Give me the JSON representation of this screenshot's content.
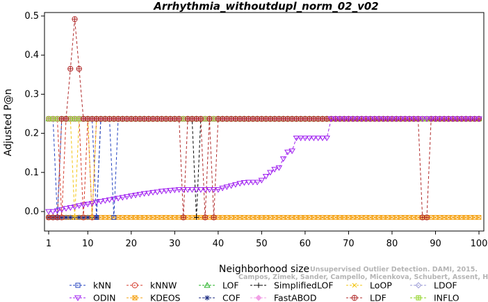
{
  "chart_data": {
    "type": "line",
    "title": "Arrhythmia_withoutdupl_norm_02_v02",
    "xlabel": "Neighborhood size",
    "ylabel": "Adjusted P@n",
    "xlim": [
      1,
      100
    ],
    "ylim": [
      -0.015,
      0.5
    ],
    "x_ticks": [
      1,
      10,
      20,
      30,
      40,
      50,
      60,
      70,
      80,
      90,
      100
    ],
    "y_ticks": [
      0.0,
      0.1,
      0.2,
      0.3,
      0.4,
      0.5
    ],
    "y_tick_labels": [
      "0.0",
      "0.1",
      "0.2",
      "0.3",
      "0.4",
      "0.5"
    ],
    "grid": false,
    "legend_position": "bottom",
    "series": [
      {
        "name": "kNN",
        "color": "#1f3fbf",
        "marker": "square",
        "base": 0.237,
        "dips": [
          [
            3,
            -0.015
          ],
          [
            12,
            -0.015
          ],
          [
            16,
            -0.015
          ]
        ]
      },
      {
        "name": "kNNW",
        "color": "#d43a2a",
        "marker": "circle",
        "base": 0.237,
        "dips": [
          [
            4,
            -0.015
          ],
          [
            9,
            -0.015
          ],
          [
            11,
            -0.015
          ]
        ]
      },
      {
        "name": "LOF",
        "color": "#22b022",
        "marker": "triangle-up",
        "base": 0.237,
        "dips": []
      },
      {
        "name": "SimplifiedLOF",
        "color": "#000000",
        "marker": "plus",
        "base": 0.237,
        "dips": [
          [
            35,
            -0.015
          ]
        ]
      },
      {
        "name": "LoOP",
        "color": "#f2c40f",
        "marker": "x",
        "base": 0.237,
        "dips": [
          [
            7,
            -0.015
          ],
          [
            11,
            -0.015
          ]
        ]
      },
      {
        "name": "LDOF",
        "color": "#9a9ad6",
        "marker": "diamond",
        "base": 0.237,
        "dips": []
      },
      {
        "name": "ODIN",
        "color": "#a020f0",
        "marker": "triangle-down",
        "values": [
          [
            1,
            0.0
          ],
          [
            2,
            0.0
          ],
          [
            3,
            0.002
          ],
          [
            4,
            0.005
          ],
          [
            5,
            0.008
          ],
          [
            6,
            0.01
          ],
          [
            7,
            0.012
          ],
          [
            8,
            0.015
          ],
          [
            9,
            0.017
          ],
          [
            10,
            0.019
          ],
          [
            11,
            0.021
          ],
          [
            12,
            0.024
          ],
          [
            13,
            0.026
          ],
          [
            14,
            0.028
          ],
          [
            15,
            0.03
          ],
          [
            16,
            0.032
          ],
          [
            17,
            0.034
          ],
          [
            18,
            0.036
          ],
          [
            19,
            0.038
          ],
          [
            20,
            0.04
          ],
          [
            21,
            0.042
          ],
          [
            22,
            0.044
          ],
          [
            23,
            0.046
          ],
          [
            24,
            0.047
          ],
          [
            25,
            0.049
          ],
          [
            26,
            0.05
          ],
          [
            27,
            0.052
          ],
          [
            28,
            0.053
          ],
          [
            29,
            0.054
          ],
          [
            30,
            0.055
          ],
          [
            31,
            0.056
          ],
          [
            32,
            0.056
          ],
          [
            33,
            0.056
          ],
          [
            34,
            0.056
          ],
          [
            35,
            0.056
          ],
          [
            36,
            0.056
          ],
          [
            37,
            0.056
          ],
          [
            38,
            0.056
          ],
          [
            39,
            0.056
          ],
          [
            40,
            0.056
          ],
          [
            41,
            0.06
          ],
          [
            42,
            0.063
          ],
          [
            43,
            0.066
          ],
          [
            44,
            0.069
          ],
          [
            45,
            0.072
          ],
          [
            46,
            0.074
          ],
          [
            47,
            0.075
          ],
          [
            48,
            0.075
          ],
          [
            49,
            0.075
          ],
          [
            50,
            0.08
          ],
          [
            51,
            0.09
          ],
          [
            52,
            0.1
          ],
          [
            53,
            0.108
          ],
          [
            54,
            0.112
          ],
          [
            55,
            0.135
          ],
          [
            56,
            0.152
          ],
          [
            57,
            0.155
          ],
          [
            58,
            0.188
          ],
          [
            59,
            0.188
          ],
          [
            60,
            0.188
          ],
          [
            61,
            0.188
          ],
          [
            62,
            0.188
          ],
          [
            63,
            0.188
          ],
          [
            64,
            0.188
          ],
          [
            65,
            0.188
          ],
          [
            66,
            0.237
          ],
          [
            100,
            0.237
          ]
        ]
      },
      {
        "name": "KDEOS",
        "color": "#f5a00f",
        "marker": "square-x",
        "base": -0.015,
        "dips": []
      },
      {
        "name": "COF",
        "color": "#1a2a80",
        "marker": "asterisk",
        "values": [
          [
            1,
            -0.015
          ],
          [
            2,
            -0.015
          ],
          [
            3,
            -0.015
          ],
          [
            4,
            -0.015
          ],
          [
            5,
            -0.015
          ],
          [
            6,
            -0.015
          ],
          [
            7,
            -0.015
          ],
          [
            8,
            -0.015
          ],
          [
            9,
            -0.015
          ],
          [
            10,
            -0.015
          ],
          [
            11,
            -0.015
          ],
          [
            12,
            -0.015
          ],
          [
            13,
            0.237
          ],
          [
            100,
            0.237
          ]
        ]
      },
      {
        "name": "FastABOD",
        "color": "#f2a0e6",
        "marker": "diamond-filled",
        "base": 0.237,
        "dips": []
      },
      {
        "name": "LDF",
        "color": "#b02a2a",
        "marker": "circle-plus",
        "values": [
          [
            1,
            -0.015
          ],
          [
            2,
            -0.015
          ],
          [
            3,
            -0.015
          ],
          [
            4,
            0.237
          ],
          [
            5,
            0.237
          ],
          [
            6,
            0.365
          ],
          [
            7,
            0.492
          ],
          [
            8,
            0.365
          ],
          [
            9,
            0.237
          ],
          [
            31,
            0.237
          ],
          [
            32,
            -0.015
          ],
          [
            33,
            0.237
          ],
          [
            36,
            0.237
          ],
          [
            37,
            -0.015
          ],
          [
            38,
            0.237
          ],
          [
            39,
            -0.015
          ],
          [
            40,
            0.237
          ],
          [
            86,
            0.237
          ],
          [
            87,
            -0.015
          ],
          [
            88,
            -0.015
          ],
          [
            89,
            0.237
          ],
          [
            100,
            0.237
          ]
        ]
      },
      {
        "name": "INFLO",
        "color": "#8ad01a",
        "marker": "square-cross",
        "base": 0.237,
        "dips": []
      }
    ]
  },
  "watermark": {
    "line1": "Unsupervised Outlier Detection. DAMI, 2015.",
    "line2": "Campos, Zimek, Sander, Campello, Micenkova, Schubert, Assent, Houle"
  }
}
